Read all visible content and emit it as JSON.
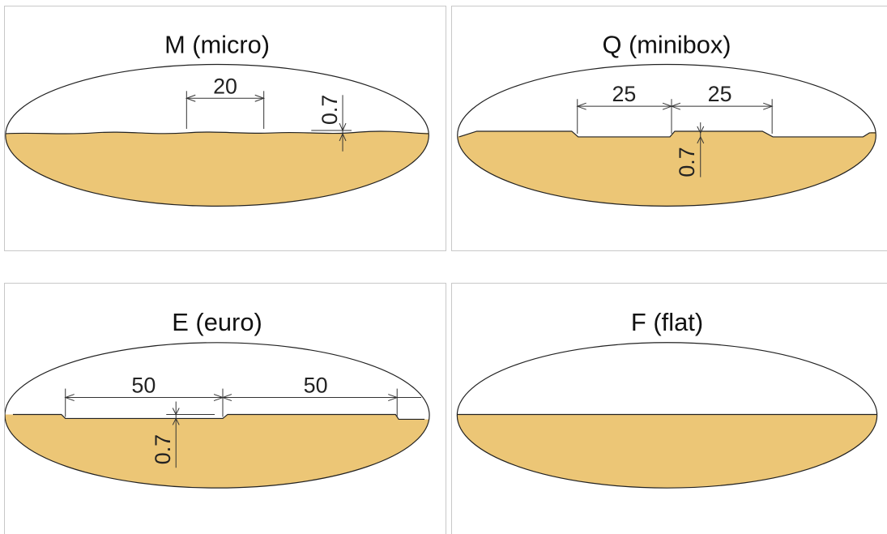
{
  "colors": {
    "board": "#ecc676",
    "line": "#222222"
  },
  "panels": {
    "micro": {
      "title": "M (micro)",
      "dim_width": "20",
      "dim_depth": "0.7"
    },
    "minibox": {
      "title": "Q (minibox)",
      "dim_width_left": "25",
      "dim_width_right": "25",
      "dim_depth": "0.7"
    },
    "euro": {
      "title": "E (euro)",
      "dim_width_left": "50",
      "dim_width_right": "50",
      "dim_depth": "0.7"
    },
    "flat": {
      "title": "F (flat)"
    }
  }
}
